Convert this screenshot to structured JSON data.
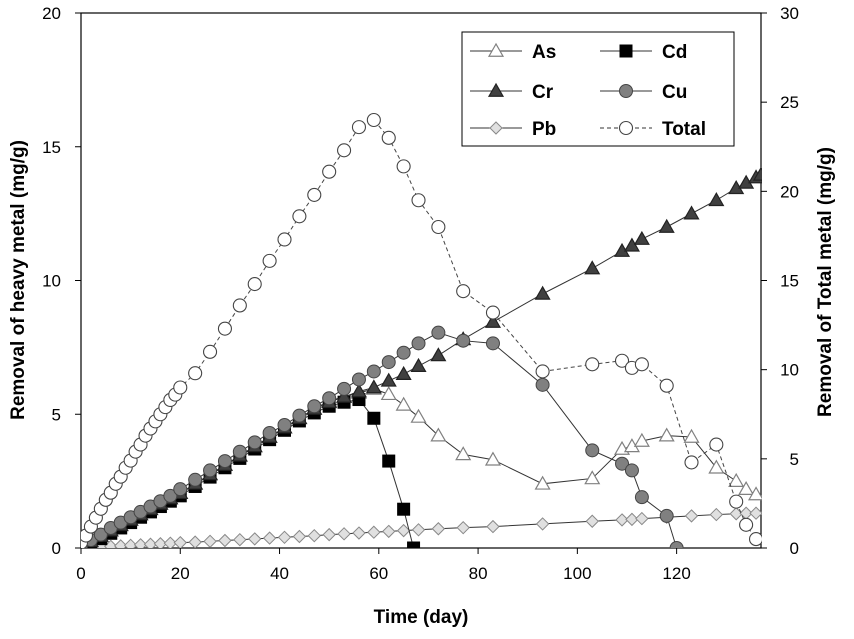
{
  "chart_data": {
    "type": "line",
    "xlabel": "Time (day)",
    "ylabel": "Removal of heavy metal (mg/g)",
    "y2label": "Removal of Total metal (mg/g)",
    "xlim": [
      0,
      137
    ],
    "ylim": [
      0,
      20
    ],
    "y2lim": [
      0,
      30
    ],
    "xticks": [
      "0",
      "20",
      "40",
      "60",
      "80",
      "100",
      "120"
    ],
    "yticks": [
      "0",
      "5",
      "10",
      "15",
      "20"
    ],
    "y2ticks": [
      "0",
      "5",
      "10",
      "15",
      "20",
      "25",
      "30"
    ],
    "grid": false,
    "legend_position": "top-right",
    "series": [
      {
        "name": "As",
        "axis": "left",
        "marker": "triangle-open",
        "line": "solid",
        "color": "#808080",
        "x": [
          0,
          2,
          4,
          6,
          8,
          10,
          12,
          14,
          16,
          18,
          20,
          23,
          26,
          29,
          32,
          35,
          38,
          41,
          44,
          47,
          50,
          53,
          56,
          59,
          62,
          65,
          68,
          72,
          77,
          83,
          93,
          103,
          109,
          111,
          113,
          118,
          123,
          128,
          132,
          134,
          136
        ],
        "y": [
          0.1,
          0.25,
          0.45,
          0.65,
          0.85,
          1.05,
          1.25,
          1.45,
          1.65,
          1.85,
          2.05,
          2.4,
          2.75,
          3.1,
          3.45,
          3.8,
          4.15,
          4.5,
          4.85,
          5.2,
          5.5,
          5.65,
          5.8,
          5.95,
          5.75,
          5.35,
          4.9,
          4.2,
          3.5,
          3.3,
          2.4,
          2.6,
          3.7,
          3.8,
          4.0,
          4.2,
          4.15,
          3.0,
          2.5,
          2.2,
          2.0
        ]
      },
      {
        "name": "Cd",
        "axis": "left",
        "marker": "square-filled",
        "line": "solid",
        "color": "#000000",
        "x": [
          0,
          2,
          4,
          6,
          8,
          10,
          12,
          14,
          16,
          18,
          20,
          23,
          26,
          29,
          32,
          35,
          38,
          41,
          44,
          47,
          50,
          53,
          56,
          59,
          62,
          65,
          67
        ],
        "y": [
          0.1,
          0.2,
          0.35,
          0.55,
          0.75,
          0.95,
          1.15,
          1.35,
          1.55,
          1.75,
          1.95,
          2.3,
          2.65,
          3.0,
          3.35,
          3.7,
          4.05,
          4.4,
          4.75,
          5.05,
          5.3,
          5.45,
          5.55,
          4.85,
          3.25,
          1.45,
          0.0
        ]
      },
      {
        "name": "Cr",
        "axis": "left",
        "marker": "triangle-filled",
        "line": "solid",
        "color": "#404040",
        "x": [
          0,
          2,
          4,
          6,
          8,
          10,
          12,
          14,
          16,
          18,
          20,
          23,
          26,
          29,
          32,
          35,
          38,
          41,
          44,
          47,
          50,
          53,
          56,
          59,
          62,
          65,
          68,
          72,
          77,
          83,
          93,
          103,
          109,
          111,
          113,
          118,
          123,
          128,
          132,
          134,
          136,
          137
        ],
        "y": [
          0.1,
          0.25,
          0.45,
          0.65,
          0.85,
          1.05,
          1.25,
          1.45,
          1.65,
          1.85,
          2.05,
          2.4,
          2.75,
          3.1,
          3.45,
          3.8,
          4.15,
          4.5,
          4.85,
          5.2,
          5.45,
          5.65,
          5.85,
          6.0,
          6.25,
          6.5,
          6.8,
          7.2,
          7.8,
          8.45,
          9.5,
          10.45,
          11.1,
          11.3,
          11.55,
          12.0,
          12.5,
          13.0,
          13.45,
          13.65,
          13.85,
          13.95
        ]
      },
      {
        "name": "Cu",
        "axis": "left",
        "marker": "circle-filled",
        "line": "solid",
        "color": "#808080",
        "x": [
          0,
          2,
          4,
          6,
          8,
          10,
          12,
          14,
          16,
          18,
          20,
          23,
          26,
          29,
          32,
          35,
          38,
          41,
          44,
          47,
          50,
          53,
          56,
          59,
          62,
          65,
          68,
          72,
          77,
          83,
          93,
          103,
          109,
          111,
          113,
          118,
          120
        ],
        "y": [
          0.1,
          0.3,
          0.5,
          0.75,
          0.95,
          1.15,
          1.35,
          1.55,
          1.75,
          1.95,
          2.2,
          2.55,
          2.9,
          3.25,
          3.6,
          3.95,
          4.3,
          4.6,
          4.95,
          5.3,
          5.6,
          5.95,
          6.3,
          6.6,
          6.95,
          7.3,
          7.65,
          8.05,
          7.75,
          7.65,
          6.1,
          3.65,
          3.15,
          2.9,
          1.9,
          1.2,
          0.0
        ]
      },
      {
        "name": "Pb",
        "axis": "left",
        "marker": "diamond-open",
        "line": "solid",
        "color": "#a0a0a0",
        "x": [
          0,
          2,
          4,
          6,
          8,
          10,
          12,
          14,
          16,
          18,
          20,
          23,
          26,
          29,
          32,
          35,
          38,
          41,
          44,
          47,
          50,
          53,
          56,
          59,
          62,
          65,
          68,
          72,
          77,
          83,
          93,
          103,
          109,
          111,
          113,
          118,
          123,
          128,
          132,
          134,
          136
        ],
        "y": [
          0.0,
          0.02,
          0.04,
          0.06,
          0.08,
          0.1,
          0.12,
          0.14,
          0.16,
          0.18,
          0.2,
          0.22,
          0.25,
          0.28,
          0.31,
          0.34,
          0.37,
          0.4,
          0.43,
          0.46,
          0.5,
          0.53,
          0.56,
          0.59,
          0.62,
          0.65,
          0.68,
          0.72,
          0.76,
          0.8,
          0.9,
          1.0,
          1.05,
          1.07,
          1.1,
          1.15,
          1.2,
          1.25,
          1.28,
          1.3,
          1.3
        ]
      },
      {
        "name": "Total",
        "axis": "right",
        "marker": "circle-open",
        "line": "dashed",
        "color": "#404040",
        "x": [
          0,
          1,
          2,
          3,
          4,
          5,
          6,
          7,
          8,
          9,
          10,
          11,
          12,
          13,
          14,
          15,
          16,
          17,
          18,
          19,
          20,
          23,
          26,
          29,
          32,
          35,
          38,
          41,
          44,
          47,
          50,
          53,
          56,
          59,
          62,
          65,
          68,
          72,
          77,
          83,
          93,
          103,
          109,
          111,
          113,
          118,
          123,
          128,
          132,
          134,
          136
        ],
        "y": [
          0.3,
          0.7,
          1.2,
          1.7,
          2.2,
          2.7,
          3.1,
          3.6,
          4.0,
          4.5,
          4.9,
          5.4,
          5.8,
          6.3,
          6.7,
          7.1,
          7.5,
          7.9,
          8.3,
          8.6,
          9.0,
          9.8,
          11.0,
          12.3,
          13.6,
          14.8,
          16.1,
          17.3,
          18.6,
          19.8,
          21.1,
          22.3,
          23.6,
          24.0,
          23.0,
          21.4,
          19.5,
          18.0,
          14.4,
          13.2,
          9.9,
          10.3,
          10.5,
          10.1,
          10.3,
          9.1,
          4.8,
          5.8,
          2.6,
          1.3,
          0.5
        ]
      }
    ]
  }
}
